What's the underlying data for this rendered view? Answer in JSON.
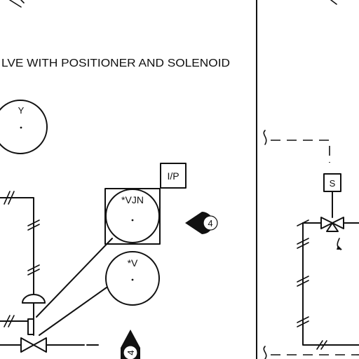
{
  "title": "LVE WITH POSITIONER AND SOLENOID",
  "bubbles": {
    "y": "Y",
    "vjn": "*VJN",
    "v": "*V"
  },
  "ip_box": "I/P",
  "solenoid_box": "S",
  "callout_right": "4",
  "callout_bottom": "4"
}
